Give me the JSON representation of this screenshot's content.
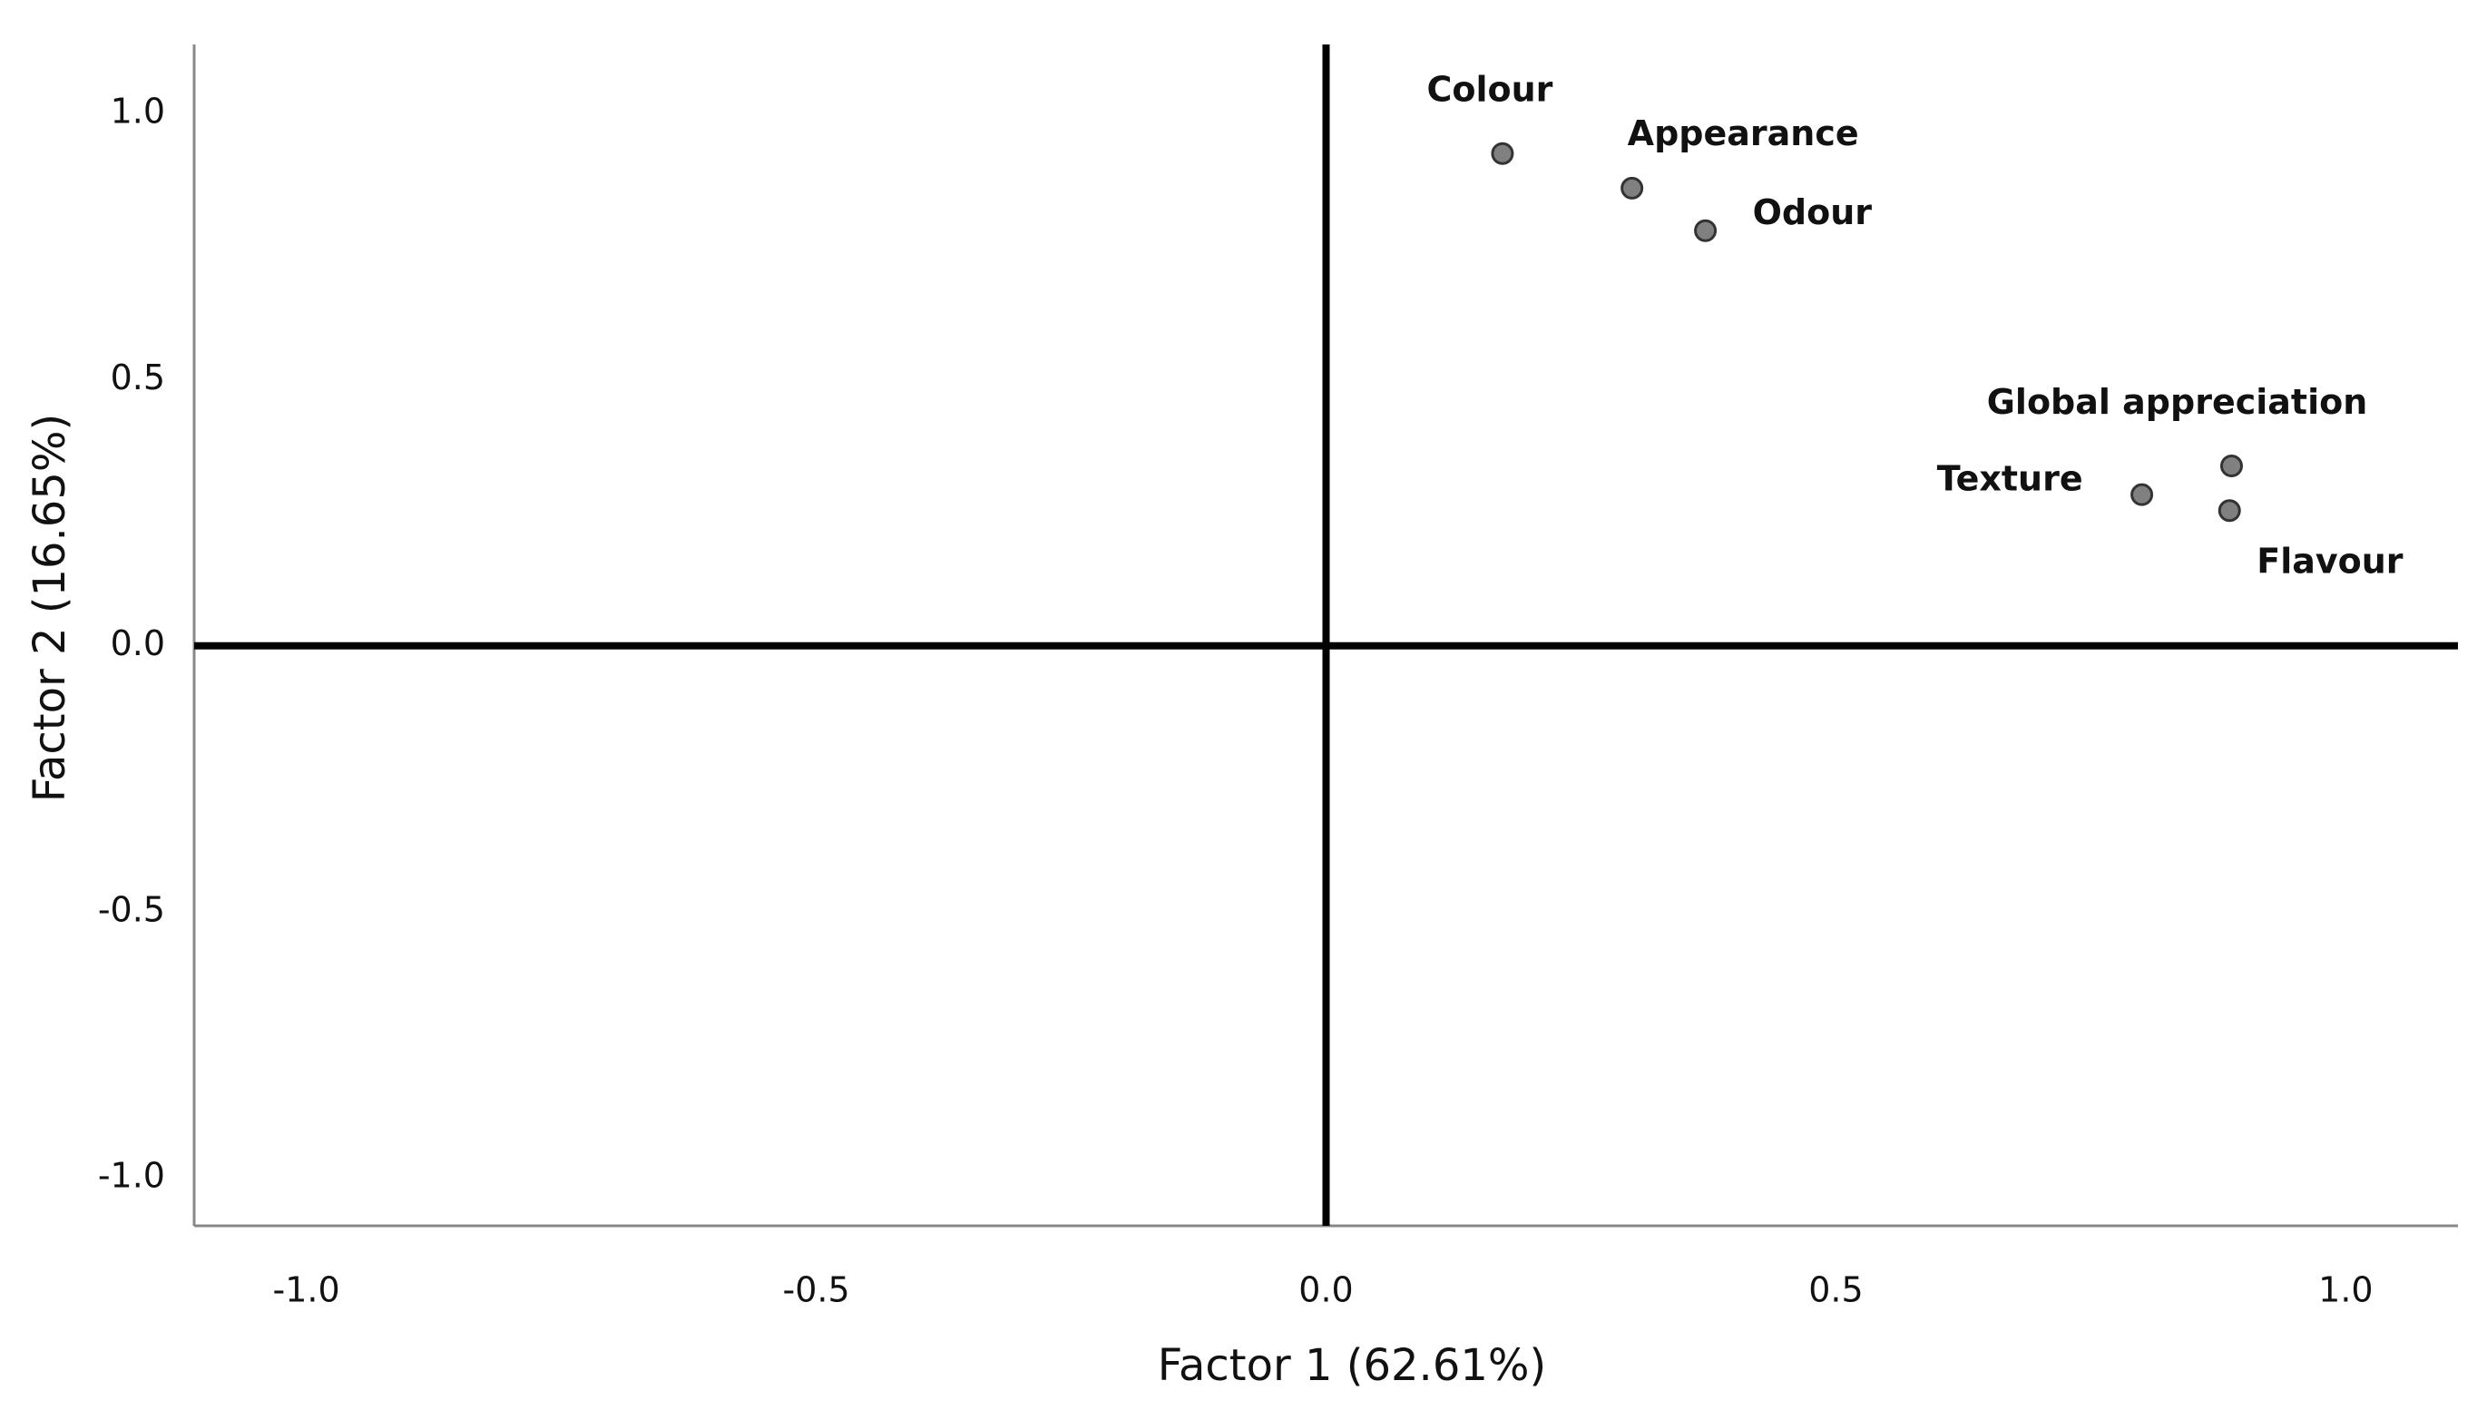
{
  "chart_data": {
    "type": "scatter",
    "x_label": "Factor 1 (62.61%)",
    "y_label": "Factor 2 (16.65%)",
    "x": [
      0.173,
      0.3,
      0.372,
      0.888,
      0.8,
      0.886
    ],
    "values": [
      0.925,
      0.86,
      0.78,
      0.338,
      0.284,
      0.254
    ],
    "labels": [
      "Colour",
      "Appearance",
      "Odour",
      "Global appreciation",
      "Texture",
      "Flavour"
    ],
    "color": "#808080",
    "xlim": [
      -1.11,
      1.11
    ],
    "ylim": [
      -1.09,
      1.13
    ],
    "xticks": [
      {
        "value": -1,
        "label": "-1.0"
      },
      {
        "value": -0.5,
        "label": "-0.5"
      },
      {
        "value": 0,
        "label": "0.0"
      },
      {
        "value": 0.5,
        "label": "0.5"
      },
      {
        "value": 1,
        "label": "1.0"
      }
    ],
    "yticks": [
      {
        "value": -1,
        "label": "-1.0"
      },
      {
        "value": -0.5,
        "label": "-0.5"
      },
      {
        "value": 0,
        "label": "0.0"
      },
      {
        "value": 0.5,
        "label": "0.5"
      },
      {
        "value": 1,
        "label": "1.0"
      }
    ]
  }
}
